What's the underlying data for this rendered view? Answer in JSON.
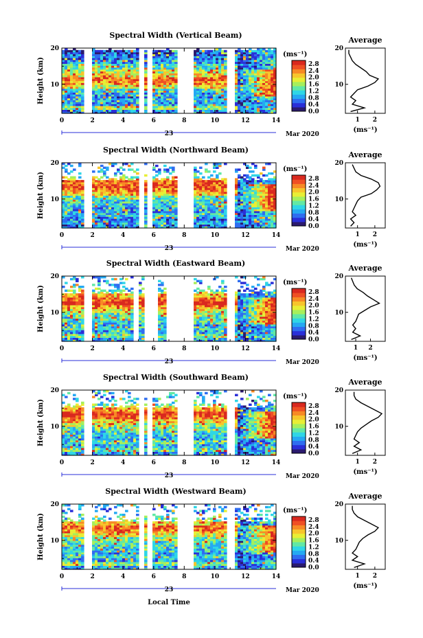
{
  "figure": {
    "xlabel": "Local Time",
    "ylabel": "Height (km)",
    "date_day": "23",
    "date_month_year": "Mar 2020",
    "units": "(ms⁻¹)",
    "colorbar_ticks": [
      "0.0",
      "0.4",
      "0.8",
      "1.2",
      "1.6",
      "2.0",
      "2.4",
      "2.8"
    ],
    "colorbar_colors": [
      "#2b1a6e",
      "#2a2fd8",
      "#2f6df0",
      "#25a9f2",
      "#2fd6e6",
      "#62e8a5",
      "#a6ef5c",
      "#e8ee35",
      "#f7c52c",
      "#f78a25",
      "#ef4f24",
      "#d9291f"
    ],
    "x_ticks": [
      "0",
      "2",
      "4",
      "6",
      "8",
      "10",
      "12",
      "14"
    ],
    "y_ticks": [
      "10",
      "20"
    ],
    "avg_title": "Average",
    "avg_xlabel": "(ms⁻¹)"
  },
  "chart_data": [
    {
      "type": "heatmap",
      "title": "Spectral Width (Vertical Beam)",
      "xlabel": "Local Time",
      "ylabel": "Height (km)",
      "xlim": [
        0,
        14
      ],
      "ylim": [
        2,
        20
      ],
      "colorbar_range": [
        0.0,
        3.0
      ],
      "data_gaps_hours": [
        [
          1.4,
          1.9
        ],
        [
          5.1,
          5.4
        ],
        [
          5.6,
          5.9
        ],
        [
          7.6,
          8.7
        ],
        [
          10.7,
          11.3
        ]
      ],
      "dominant_features": "Broad widths 2.0-2.8 ms-1 near 9-13 km from 0-6 h; narrow widths elsewhere; strong widths near 10 km at 14 h",
      "average_profile": {
        "title": "Average",
        "xlabel": "(ms⁻¹)",
        "x_ticks": [
          "1",
          "2"
        ],
        "xlim": [
          0.3,
          2.6
        ],
        "height_km": [
          2.5,
          3.5,
          4.5,
          5.5,
          6.5,
          7.5,
          8.5,
          9.5,
          10.5,
          11.5,
          12.5,
          13.5,
          14.5,
          15.5,
          16.5,
          17.5,
          18.5,
          19.5
        ],
        "width": [
          0.6,
          1.4,
          0.7,
          0.9,
          0.6,
          0.8,
          1.0,
          1.6,
          2.0,
          2.2,
          1.7,
          1.5,
          1.2,
          0.9,
          0.7,
          0.6,
          0.5,
          0.5
        ]
      }
    },
    {
      "type": "heatmap",
      "title": "Spectral Width (Northward Beam)",
      "xlabel": "Local Time",
      "ylabel": "Height (km)",
      "xlim": [
        0,
        14
      ],
      "ylim": [
        2,
        20
      ],
      "colorbar_range": [
        0.0,
        3.0
      ],
      "data_gaps_hours": [
        [
          1.4,
          1.9
        ],
        [
          5.1,
          5.4
        ],
        [
          5.6,
          5.9
        ],
        [
          7.6,
          8.7
        ],
        [
          10.7,
          11.3
        ]
      ],
      "dominant_features": "Broad widths near 12-16 km layer; narrow widths 0.2-0.6 ms-1 below 12 km; broad widths 10-12 km at 14 h",
      "average_profile": {
        "title": "Average",
        "xlabel": "(ms⁻¹)",
        "x_ticks": [
          "1",
          "2"
        ],
        "xlim": [
          0.3,
          2.6
        ],
        "height_km": [
          2.5,
          3.5,
          4.5,
          5.5,
          6.5,
          7.5,
          8.5,
          9.5,
          10.5,
          11.5,
          12.5,
          13.5,
          14.5,
          15.5,
          16.5,
          17.5,
          18.5,
          19.5
        ],
        "width": [
          0.6,
          0.8,
          0.6,
          0.9,
          0.7,
          0.8,
          0.9,
          1.0,
          1.2,
          1.8,
          2.1,
          2.3,
          2.2,
          1.8,
          1.2,
          0.9,
          0.8,
          0.7
        ]
      }
    },
    {
      "type": "heatmap",
      "title": "Spectral Width (Eastward Beam)",
      "xlabel": "Local Time",
      "ylabel": "Height (km)",
      "xlim": [
        0,
        14
      ],
      "ylim": [
        2,
        20
      ],
      "colorbar_range": [
        0.0,
        3.0
      ],
      "data_gaps_hours": [
        [
          1.4,
          1.9
        ],
        [
          4.7,
          5.1
        ],
        [
          5.4,
          6.2
        ],
        [
          6.9,
          8.7
        ],
        [
          10.7,
          11.3
        ]
      ],
      "dominant_features": "Broad widths near 10-12 km layer; narrow widths below; broad widths 10-14 km at 14 h",
      "average_profile": {
        "title": "Average",
        "xlabel": "(ms⁻¹)",
        "x_ticks": [
          "1",
          "2"
        ],
        "xlim": [
          0.3,
          3.0
        ],
        "height_km": [
          2.5,
          3.5,
          4.5,
          5.5,
          6.5,
          7.5,
          8.5,
          9.5,
          10.5,
          11.5,
          12.5,
          13.5,
          14.5,
          15.5,
          16.5,
          17.5,
          18.5,
          19.5
        ],
        "width": [
          0.7,
          1.3,
          0.8,
          1.0,
          0.8,
          1.0,
          1.1,
          1.2,
          1.6,
          2.0,
          2.6,
          2.2,
          1.8,
          1.5,
          1.1,
          0.9,
          0.8,
          0.7
        ]
      }
    },
    {
      "type": "heatmap",
      "title": "Spectral Width (Southward Beam)",
      "xlabel": "Local Time",
      "ylabel": "Height (km)",
      "xlim": [
        0,
        14
      ],
      "ylim": [
        2,
        20
      ],
      "colorbar_range": [
        0.0,
        3.0
      ],
      "data_gaps_hours": [
        [
          1.4,
          1.9
        ],
        [
          5.1,
          5.4
        ],
        [
          5.6,
          5.9
        ],
        [
          7.6,
          8.7
        ],
        [
          10.7,
          11.3
        ]
      ],
      "dominant_features": "Broad widths 11-16 km from 0-6 h; narrow widths below; broad widths 10-14 km at 14 h",
      "average_profile": {
        "title": "Average",
        "xlabel": "(ms⁻¹)",
        "x_ticks": [
          "1",
          "2"
        ],
        "xlim": [
          0.3,
          2.6
        ],
        "height_km": [
          2.5,
          3.5,
          4.5,
          5.5,
          6.5,
          7.5,
          8.5,
          9.5,
          10.5,
          11.5,
          12.5,
          13.5,
          14.5,
          15.5,
          16.5,
          17.5,
          18.5,
          19.5
        ],
        "width": [
          0.7,
          1.2,
          0.8,
          1.1,
          0.8,
          0.9,
          1.0,
          1.2,
          1.5,
          1.8,
          2.2,
          2.4,
          2.0,
          1.6,
          1.2,
          0.9,
          0.8,
          0.8
        ]
      }
    },
    {
      "type": "heatmap",
      "title": "Spectral Width (Westward Beam)",
      "xlabel": "Local Time",
      "ylabel": "Height (km)",
      "xlim": [
        0,
        14
      ],
      "ylim": [
        2,
        20
      ],
      "colorbar_range": [
        0.0,
        3.0
      ],
      "data_gaps_hours": [
        [
          1.4,
          1.9
        ],
        [
          5.1,
          5.4
        ],
        [
          5.6,
          5.9
        ],
        [
          7.6,
          8.7
        ],
        [
          10.7,
          11.3
        ]
      ],
      "dominant_features": "Broad widths near 11-14 km layer; narrow widths below; broad widths 10-14 km at 14 h",
      "average_profile": {
        "title": "Average",
        "xlabel": "(ms⁻¹)",
        "x_ticks": [
          "1",
          "2"
        ],
        "xlim": [
          0.3,
          2.6
        ],
        "height_km": [
          2.5,
          3.5,
          4.5,
          5.5,
          6.5,
          7.5,
          8.5,
          9.5,
          10.5,
          11.5,
          12.5,
          13.5,
          14.5,
          15.5,
          16.5,
          17.5,
          18.5,
          19.5
        ],
        "width": [
          0.8,
          1.4,
          0.7,
          1.0,
          0.7,
          0.9,
          1.0,
          1.1,
          1.3,
          1.6,
          2.0,
          2.2,
          1.8,
          1.4,
          1.0,
          0.8,
          0.7,
          0.7
        ]
      }
    }
  ]
}
